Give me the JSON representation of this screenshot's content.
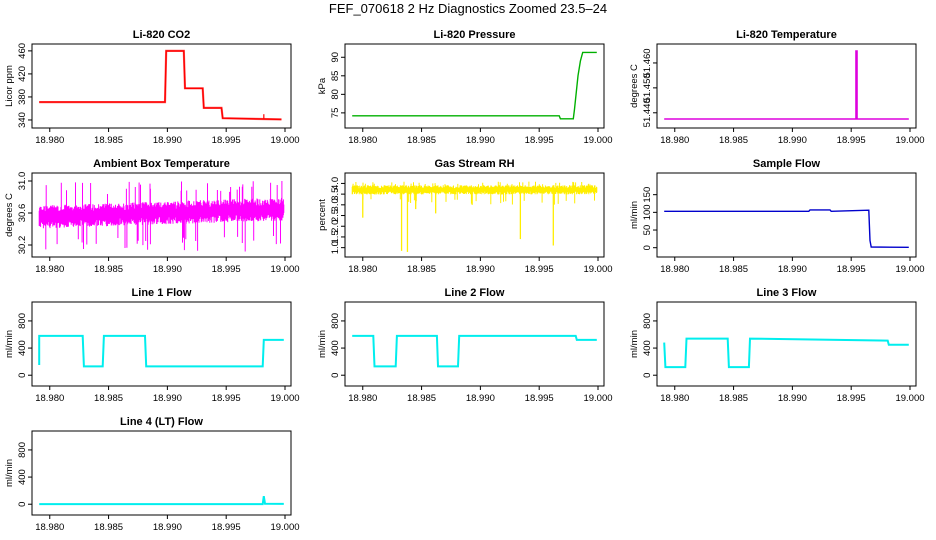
{
  "title": "FEF_070618  2 Hz Diagnostics Zoomed 23.5–24",
  "chart_data": [
    {
      "id": "co2",
      "type": "line",
      "title": "Li-820 CO2",
      "ylabel": "Licor ppm",
      "color": "#ff0000",
      "xlim": [
        18.979,
        19.0
      ],
      "xticks": [
        "18.980",
        "18.985",
        "18.990",
        "18.995",
        "19.000"
      ],
      "xtick_values": [
        18.98,
        18.985,
        18.99,
        18.995,
        19.0
      ],
      "ylim": [
        333,
        465
      ],
      "yticks": [
        "340",
        "380",
        "420",
        "460"
      ],
      "ytick_values": [
        340,
        380,
        420,
        460
      ],
      "x": [
        18.9791,
        18.9898,
        18.9899,
        18.9914,
        18.9915,
        18.993,
        18.9931,
        18.9946,
        18.9947,
        18.9997
      ],
      "y": [
        371,
        371,
        460,
        460,
        395,
        395,
        361,
        361,
        343,
        341
      ],
      "spikes": [
        {
          "x": 18.9982,
          "y": 350
        }
      ]
    },
    {
      "id": "pressure",
      "type": "line",
      "title": "Li-820 Pressure",
      "ylabel": "kPa",
      "color": "#00b000",
      "xlim": [
        18.979,
        19.0
      ],
      "xticks": [
        "18.980",
        "18.985",
        "18.990",
        "18.995",
        "19.000"
      ],
      "xtick_values": [
        18.98,
        18.985,
        18.99,
        18.995,
        19.0
      ],
      "ylim": [
        72,
        92.5
      ],
      "yticks": [
        "75",
        "80",
        "85",
        "90"
      ],
      "ytick_values": [
        75,
        80,
        85,
        90
      ],
      "x": [
        18.9791,
        18.9967,
        18.9968,
        18.9979,
        18.998,
        18.9983,
        18.9985,
        18.9987,
        18.9999
      ],
      "y": [
        74.2,
        74.2,
        73.4,
        73.4,
        76,
        85,
        89,
        91.3,
        91.3
      ]
    },
    {
      "id": "temperature",
      "type": "line",
      "title": "Li-820 Temperature",
      "ylabel": "degrees C",
      "color": "#dd00dd",
      "xlim": [
        18.979,
        19.0
      ],
      "xticks": [
        "18.980",
        "18.985",
        "18.990",
        "18.995",
        "19.000"
      ],
      "xtick_values": [
        18.98,
        18.985,
        18.99,
        18.995,
        19.0
      ],
      "ylim": [
        51.4355,
        51.466
      ],
      "yticks": [
        "51.440",
        "51.450",
        "51.460"
      ],
      "ytick_values": [
        51.44,
        51.45,
        51.46
      ],
      "x": [
        18.9791,
        18.9954,
        18.9954,
        18.9955,
        18.9955,
        18.9999
      ],
      "y": [
        51.4375,
        51.4375,
        51.4648,
        51.4648,
        51.4375,
        51.4375
      ]
    },
    {
      "id": "ambient",
      "type": "noise",
      "title": "Ambient Box Temperature",
      "ylabel": "degrees C",
      "color": "#ff00ff",
      "xlim": [
        18.979,
        19.0
      ],
      "xticks": [
        "18.980",
        "18.985",
        "18.990",
        "18.995",
        "19.000"
      ],
      "xtick_values": [
        18.98,
        18.985,
        18.99,
        18.995,
        19.0
      ],
      "ylim": [
        30.1,
        31.05
      ],
      "yticks": [
        "30.2",
        "30.6",
        "31.0"
      ],
      "ytick_values": [
        30.2,
        30.6,
        31.0
      ],
      "x_range": [
        18.9791,
        18.9999
      ],
      "baseline_start": 30.55,
      "baseline_end": 30.65,
      "band": 0.12,
      "spike_min": 30.1,
      "spike_max": 31.0
    },
    {
      "id": "rh",
      "type": "noise",
      "title": "Gas Stream RH",
      "ylabel": "percent",
      "color": "#ffee00",
      "xlim": [
        18.979,
        19.0
      ],
      "xticks": [
        "18.980",
        "18.985",
        "18.990",
        "18.995",
        "19.000"
      ],
      "xtick_values": [
        18.98,
        18.985,
        18.99,
        18.995,
        19.0
      ],
      "ylim": [
        0.75,
        4.3
      ],
      "yticks": [
        "1.0",
        "1.5",
        "2.0",
        "2.5",
        "3.0",
        "3.5",
        "4.0"
      ],
      "ytick_values": [
        1.0,
        1.5,
        2.0,
        2.5,
        3.0,
        3.5,
        4.0
      ],
      "x_range": [
        18.9791,
        18.9999
      ],
      "baseline_start": 3.7,
      "baseline_end": 3.7,
      "band": 0.18,
      "spike_min": 3.0,
      "spike_max": 4.1,
      "dips": [
        {
          "x": 18.98,
          "y": 2.4
        },
        {
          "x": 18.9833,
          "y": 0.85
        },
        {
          "x": 18.9838,
          "y": 0.8
        },
        {
          "x": 18.9845,
          "y": 2.8
        },
        {
          "x": 18.9862,
          "y": 2.6
        },
        {
          "x": 18.9934,
          "y": 1.4
        },
        {
          "x": 18.9962,
          "y": 1.1
        },
        {
          "x": 18.9893,
          "y": 3.0
        }
      ]
    },
    {
      "id": "sample",
      "type": "line",
      "title": "Sample Flow",
      "ylabel": "ml/min",
      "color": "#0000cc",
      "xlim": [
        18.979,
        19.0
      ],
      "xticks": [
        "18.980",
        "18.985",
        "18.990",
        "18.995",
        "19.000"
      ],
      "xtick_values": [
        18.98,
        18.985,
        18.99,
        18.995,
        19.0
      ],
      "ylim": [
        -15,
        200
      ],
      "yticks": [
        "0",
        "50",
        "100",
        "150"
      ],
      "ytick_values": [
        0,
        50,
        100,
        150
      ],
      "x": [
        18.9791,
        18.9914,
        18.9915,
        18.9932,
        18.9933,
        18.9965,
        18.9966,
        18.9967,
        18.9999
      ],
      "y": [
        103,
        103,
        107,
        107,
        103,
        106,
        20,
        2,
        1
      ]
    },
    {
      "id": "line1",
      "type": "line",
      "title": "Line 1 Flow",
      "ylabel": "ml/min",
      "color": "#00eeee",
      "xlim": [
        18.979,
        19.0
      ],
      "xticks": [
        "18.980",
        "18.985",
        "18.990",
        "18.995",
        "19.000"
      ],
      "xtick_values": [
        18.98,
        18.985,
        18.99,
        18.995,
        19.0
      ],
      "ylim": [
        -100,
        1020
      ],
      "yticks": [
        "0",
        "400",
        "800"
      ],
      "ytick_values": [
        0,
        400,
        800
      ],
      "x": [
        18.9791,
        18.9791,
        18.9828,
        18.9829,
        18.9845,
        18.9846,
        18.9881,
        18.9882,
        18.9981,
        18.9982,
        18.9999
      ],
      "y": [
        150,
        580,
        580,
        130,
        130,
        580,
        580,
        130,
        130,
        520,
        520
      ]
    },
    {
      "id": "line2",
      "type": "line",
      "title": "Line 2 Flow",
      "ylabel": "ml/min",
      "color": "#00eeee",
      "xlim": [
        18.979,
        19.0
      ],
      "xticks": [
        "18.980",
        "18.985",
        "18.990",
        "18.995",
        "19.000"
      ],
      "xtick_values": [
        18.98,
        18.985,
        18.99,
        18.995,
        19.0
      ],
      "ylim": [
        -100,
        1020
      ],
      "yticks": [
        "0",
        "400",
        "800"
      ],
      "ytick_values": [
        0,
        400,
        800
      ],
      "x": [
        18.9791,
        18.9809,
        18.981,
        18.9828,
        18.9829,
        18.9863,
        18.9864,
        18.9881,
        18.9882,
        18.9981,
        18.9982,
        18.9999
      ],
      "y": [
        580,
        580,
        130,
        130,
        580,
        580,
        130,
        130,
        580,
        580,
        520,
        520
      ]
    },
    {
      "id": "line3",
      "type": "line",
      "title": "Line 3 Flow",
      "ylabel": "ml/min",
      "color": "#00eeee",
      "xlim": [
        18.979,
        19.0
      ],
      "xticks": [
        "18.980",
        "18.985",
        "18.990",
        "18.995",
        "19.000"
      ],
      "xtick_values": [
        18.98,
        18.985,
        18.99,
        18.995,
        19.0
      ],
      "ylim": [
        -100,
        1020
      ],
      "yticks": [
        "0",
        "400",
        "800"
      ],
      "ytick_values": [
        0,
        400,
        800
      ],
      "x": [
        18.9791,
        18.9791,
        18.9792,
        18.9809,
        18.981,
        18.9845,
        18.9846,
        18.9863,
        18.9864,
        18.9981,
        18.9982,
        18.9999
      ],
      "y": [
        480,
        480,
        120,
        120,
        540,
        540,
        120,
        120,
        540,
        510,
        450,
        450
      ]
    },
    {
      "id": "line4",
      "type": "line",
      "title": "Line 4 (LT) Flow",
      "ylabel": "ml/min",
      "color": "#00eeee",
      "xlim": [
        18.979,
        19.0
      ],
      "xticks": [
        "18.980",
        "18.985",
        "18.990",
        "18.995",
        "19.000"
      ],
      "xtick_values": [
        18.98,
        18.985,
        18.99,
        18.995,
        19.0
      ],
      "ylim": [
        -100,
        1020
      ],
      "yticks": [
        "0",
        "400",
        "800"
      ],
      "ytick_values": [
        0,
        400,
        800
      ],
      "x": [
        18.9791,
        18.9981,
        18.9982,
        18.9983,
        18.9999
      ],
      "y": [
        2,
        2,
        120,
        8,
        5
      ]
    }
  ]
}
